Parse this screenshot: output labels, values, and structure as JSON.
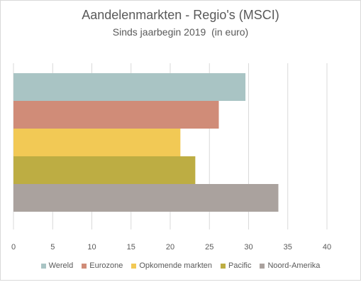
{
  "chart_data": {
    "type": "bar",
    "orientation": "horizontal",
    "title": "Aandelenmarkten - Regio's (MSCI)",
    "subtitle": "Sinds jaarbegin 2019  (in euro)",
    "series": [
      {
        "name": "Wereld",
        "value": 29.6,
        "color": "#a9c4c4"
      },
      {
        "name": "Eurozone",
        "value": 26.2,
        "color": "#d08c78"
      },
      {
        "name": "Opkomende markten",
        "value": 21.3,
        "color": "#f2c955"
      },
      {
        "name": "Pacific",
        "value": 23.2,
        "color": "#bdad43"
      },
      {
        "name": "Noord-Amerika",
        "value": 33.8,
        "color": "#aaa29e"
      }
    ],
    "xlim": [
      0,
      40
    ],
    "xticks": [
      "0",
      "5",
      "10",
      "15",
      "20",
      "25",
      "30",
      "35",
      "40"
    ],
    "grid": true,
    "legend_position": "bottom"
  }
}
